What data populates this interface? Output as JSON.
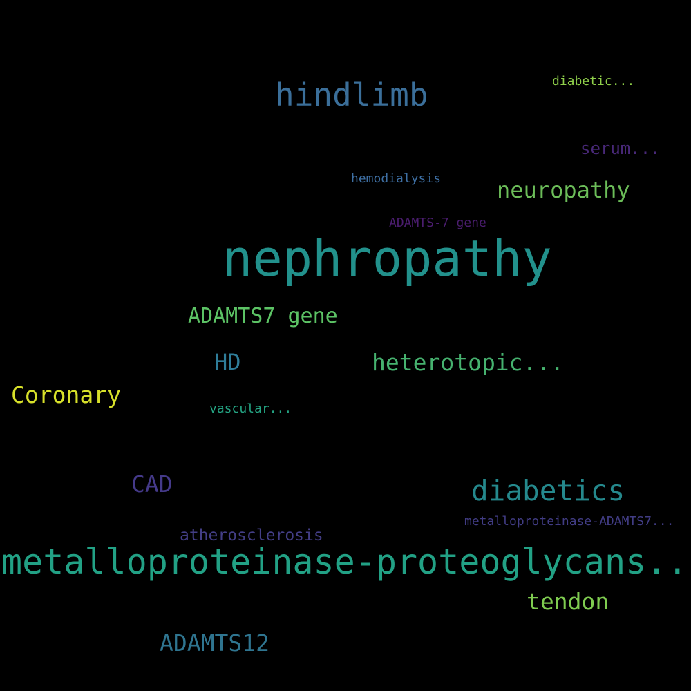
{
  "words": [
    {
      "id": "hindlimb",
      "text": "hindlimb",
      "color": "#3b6f9a"
    },
    {
      "id": "diabetic",
      "text": "diabetic...",
      "color": "#8fcf4a"
    },
    {
      "id": "serum",
      "text": "serum...",
      "color": "#482878"
    },
    {
      "id": "hemodialysis",
      "text": "hemodialysis",
      "color": "#3e6fa3"
    },
    {
      "id": "neuropathy",
      "text": "neuropathy",
      "color": "#6cbd59"
    },
    {
      "id": "adamts7gene2",
      "text": "ADAMTS-7 gene",
      "color": "#4b1d6f"
    },
    {
      "id": "nephropathy",
      "text": "nephropathy",
      "color": "#22918c"
    },
    {
      "id": "adamts7gene",
      "text": "ADAMTS7 gene",
      "color": "#5cc365"
    },
    {
      "id": "hd",
      "text": "HD",
      "color": "#2f7d99"
    },
    {
      "id": "heterotopic",
      "text": "heterotopic...",
      "color": "#46b26f"
    },
    {
      "id": "coronary",
      "text": "Coronary",
      "color": "#d7e02a"
    },
    {
      "id": "vascular",
      "text": "vascular...",
      "color": "#24a483"
    },
    {
      "id": "cad",
      "text": "CAD",
      "color": "#453a8a"
    },
    {
      "id": "diabetics",
      "text": "diabetics",
      "color": "#25898d"
    },
    {
      "id": "metadamts7",
      "text": "metalloproteinase-ADAMTS7...",
      "color": "#413c84"
    },
    {
      "id": "atherosclerosis",
      "text": "atherosclerosis",
      "color": "#433e86"
    },
    {
      "id": "metproteo",
      "text": "metalloproteinase-proteoglycans...",
      "color": "#22a185"
    },
    {
      "id": "tendon",
      "text": "tendon",
      "color": "#7fcc50"
    },
    {
      "id": "adamts12",
      "text": "ADAMTS12",
      "color": "#2f7590"
    }
  ]
}
